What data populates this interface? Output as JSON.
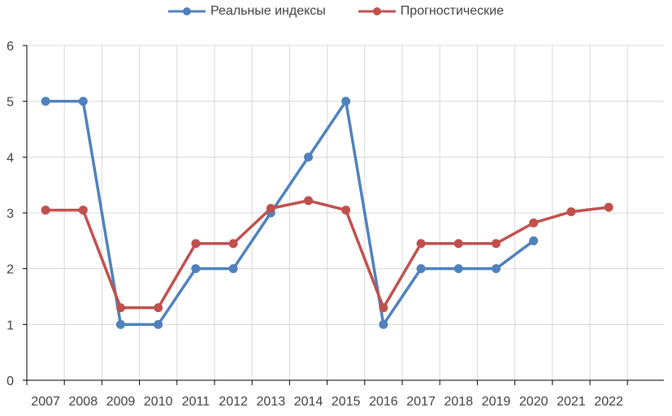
{
  "chart_data": {
    "type": "line",
    "title": "",
    "xlabel": "",
    "ylabel": "",
    "categories": [
      "2007",
      "2008",
      "2009",
      "2010",
      "2011",
      "2012",
      "2013",
      "2014",
      "2015",
      "2016",
      "2017",
      "2018",
      "2019",
      "2020",
      "2021",
      "2022"
    ],
    "ylim": [
      0,
      6
    ],
    "yticks": [
      0,
      1,
      2,
      3,
      4,
      5,
      6
    ],
    "grid": true,
    "legend_position": "top-center",
    "series": [
      {
        "name": "Реальные индексы",
        "color": "#4f81bd",
        "values": [
          5,
          5,
          1,
          1,
          2,
          2,
          3,
          4,
          5,
          1,
          2,
          2,
          2,
          2.5,
          null,
          null
        ]
      },
      {
        "name": "Прогностические",
        "color": "#c0504d",
        "values": [
          3.05,
          3.05,
          1.3,
          1.3,
          2.45,
          2.45,
          3.08,
          3.22,
          3.05,
          1.3,
          2.45,
          2.45,
          2.45,
          2.82,
          3.02,
          3.1
        ]
      }
    ]
  }
}
